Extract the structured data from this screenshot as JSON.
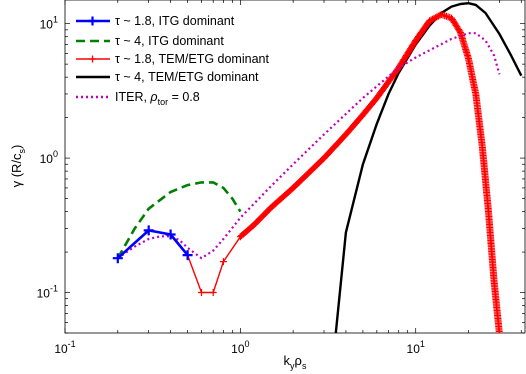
{
  "chart_data": {
    "type": "line",
    "xscale": "log",
    "yscale": "log",
    "xlim": [
      0.1,
      42
    ],
    "ylim": [
      0.05,
      15
    ],
    "xlabel_main": "k",
    "xlabel_sub1": "y",
    "xlabel_mid": "ρ",
    "xlabel_sub2": "s",
    "ylabel_pre": "γ (R/c",
    "ylabel_sub": "s",
    "ylabel_post": ")",
    "xticks": [
      {
        "value": 0.1,
        "base": "10",
        "exp": "-1"
      },
      {
        "value": 1,
        "base": "10",
        "exp": "0"
      },
      {
        "value": 10,
        "base": "10",
        "exp": "1"
      }
    ],
    "yticks": [
      {
        "value": 0.1,
        "base": "10",
        "exp": "-1"
      },
      {
        "value": 1,
        "base": "10",
        "exp": "0"
      },
      {
        "value": 10,
        "base": "10",
        "exp": "1"
      }
    ],
    "legend_position": "top-left",
    "series": [
      {
        "legend": "τ ~ 1.8, ITG dominant",
        "color": "#0000ff",
        "style": "solid",
        "marker": "+",
        "x": [
          0.2,
          0.3,
          0.4,
          0.5
        ],
        "y": [
          0.18,
          0.29,
          0.27,
          0.19
        ]
      },
      {
        "legend": "τ ~ 4, ITG dominant",
        "color": "#008000",
        "style": "dashed",
        "marker": "none",
        "x": [
          0.2,
          0.25,
          0.3,
          0.4,
          0.5,
          0.6,
          0.7,
          0.8,
          0.9,
          1.0
        ],
        "y": [
          0.18,
          0.3,
          0.42,
          0.56,
          0.63,
          0.66,
          0.66,
          0.6,
          0.5,
          0.4
        ]
      },
      {
        "legend": "τ ~ 1.8, TEM/ETG dominant",
        "color": "#ff0000",
        "style": "solid",
        "marker": "+",
        "x": [
          0.5,
          0.6,
          0.7,
          0.8,
          1,
          1.2,
          1.5,
          2,
          3,
          4,
          5,
          6,
          8,
          10,
          12,
          14,
          16,
          18,
          20,
          22,
          24,
          26,
          28,
          30
        ],
        "y": [
          0.19,
          0.1,
          0.1,
          0.17,
          0.26,
          0.32,
          0.43,
          0.6,
          1.0,
          1.5,
          2.1,
          2.8,
          4.7,
          7.5,
          10.5,
          11.7,
          11.0,
          8.6,
          5.5,
          3.0,
          1.2,
          0.4,
          0.12,
          0.05
        ]
      },
      {
        "legend": "τ ~ 4, TEM/ETG dominant",
        "color": "#000000",
        "style": "solid",
        "marker": "none",
        "x": [
          3.5,
          4,
          5,
          6,
          7,
          8,
          10,
          12,
          14,
          16,
          18,
          20,
          22,
          25,
          30,
          35,
          40
        ],
        "y": [
          0.05,
          0.28,
          0.9,
          1.8,
          3.0,
          4.3,
          7.0,
          9.7,
          12.0,
          13.4,
          14.0,
          14.2,
          13.8,
          12.0,
          8.4,
          5.8,
          4.1
        ]
      },
      {
        "legend_pre": "ITER, ",
        "legend_rho": "ρ",
        "legend_sub": "tor",
        "legend_post": " = 0.8",
        "color": "#bf00bf",
        "style": "dotted",
        "marker": "none",
        "x": [
          0.2,
          0.25,
          0.3,
          0.35,
          0.4,
          0.45,
          0.5,
          0.6,
          0.7,
          0.8,
          1,
          1.5,
          2,
          3,
          5,
          8,
          10,
          13,
          16,
          20,
          22,
          25,
          28,
          30
        ],
        "y": [
          0.18,
          0.22,
          0.25,
          0.262,
          0.262,
          0.245,
          0.215,
          0.18,
          0.205,
          0.25,
          0.36,
          0.62,
          0.9,
          1.5,
          2.8,
          4.7,
          5.6,
          6.7,
          7.7,
          8.5,
          8.5,
          7.5,
          5.8,
          4.2
        ]
      }
    ]
  }
}
